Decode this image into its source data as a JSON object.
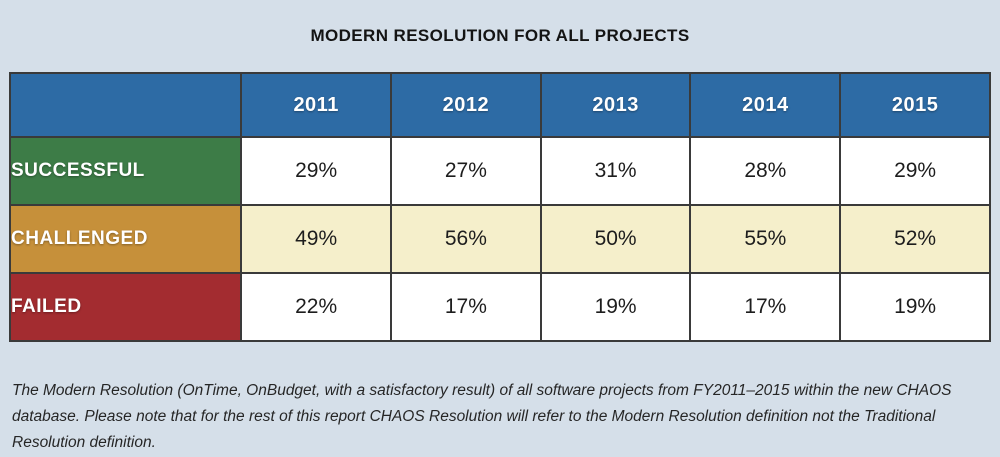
{
  "title": "MODERN RESOLUTION FOR ALL PROJECTS",
  "chart_data": {
    "type": "table",
    "columns": [
      "",
      "2011",
      "2012",
      "2013",
      "2014",
      "2015"
    ],
    "rows": [
      {
        "label": "SUCCESSFUL",
        "values": [
          "29%",
          "27%",
          "31%",
          "28%",
          "29%"
        ]
      },
      {
        "label": "CHALLENGED",
        "values": [
          "49%",
          "56%",
          "50%",
          "55%",
          "52%"
        ]
      },
      {
        "label": "FAILED",
        "values": [
          "22%",
          "17%",
          "19%",
          "17%",
          "19%"
        ]
      }
    ],
    "title": "MODERN RESOLUTION FOR ALL PROJECTS",
    "legend_position": "none",
    "grid": true
  },
  "caption": "The Modern Resolution (OnTime, OnBudget, with a satisfactory result) of all software projects from FY2011–2015 within the new CHAOS database. Please note that for the rest of this report CHAOS Resolution will refer to the Modern Resolution definition not the Traditional Resolution definition.",
  "colors": {
    "page_background": "#d5dfe9",
    "header_blue": "#2d6ba5",
    "successful_green": "#3d7c47",
    "challenged_gold": "#c6903a",
    "challenged_cell_cream": "#f5efcb",
    "failed_red": "#a32c30",
    "cell_white": "#ffffff",
    "grid_border": "#3a3a3a"
  }
}
